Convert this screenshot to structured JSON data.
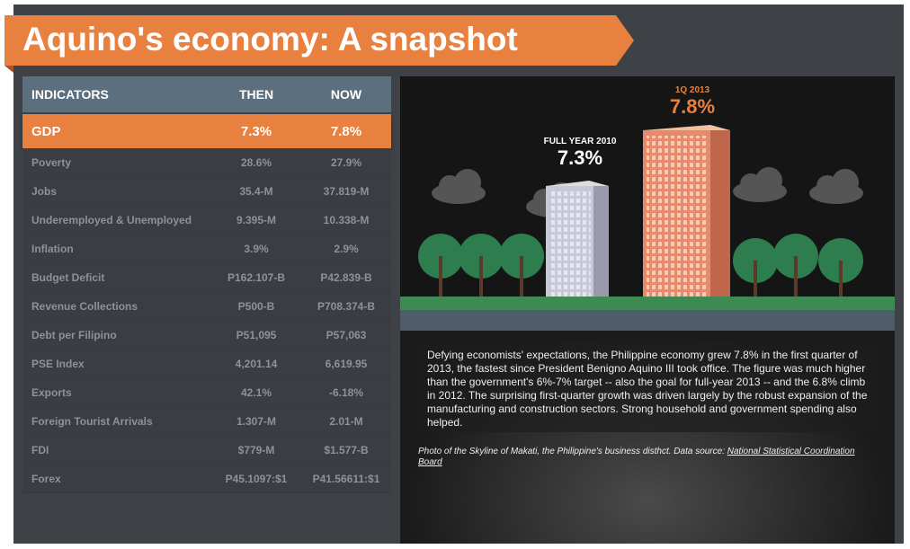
{
  "title": "Aquino's economy: A snapshot",
  "table": {
    "headers": [
      "INDICATORS",
      "THEN",
      "NOW"
    ],
    "highlight": {
      "name": "GDP",
      "then": "7.3%",
      "now": "7.8%"
    },
    "rows": [
      {
        "name": "Poverty",
        "then": "28.6%",
        "now": "27.9%"
      },
      {
        "name": "Jobs",
        "then": "35.4-M",
        "now": "37.819-M"
      },
      {
        "name": "Underemployed & Unemployed",
        "then": "9.395-M",
        "now": "10.338-M"
      },
      {
        "name": "Inflation",
        "then": "3.9%",
        "now": "2.9%"
      },
      {
        "name": "Budget Deficit",
        "then": "P162.107-B",
        "now": "P42.839-B"
      },
      {
        "name": "Revenue Collections",
        "then": "P500-B",
        "now": "P708.374-B"
      },
      {
        "name": "Debt per Filipino",
        "then": "P51,095",
        "now": "P57,063"
      },
      {
        "name": "PSE Index",
        "then": "4,201.14",
        "now": "6,619.95"
      },
      {
        "name": "Exports",
        "then": "42.1%",
        "now": "-6.18%"
      },
      {
        "name": "Foreign Tourist Arrivals",
        "then": "1.307-M",
        "now": "2.01-M"
      },
      {
        "name": "FDI",
        "then": "$779-M",
        "now": "$1.577-B"
      },
      {
        "name": "Forex",
        "then": "P45.1097:$1",
        "now": "P41.56611:$1"
      }
    ]
  },
  "illustration": {
    "left_label": "FULL YEAR 2010",
    "left_value": "7.3%",
    "right_label": "1Q 2013",
    "right_value": "7.8%",
    "accent": "#e8803f"
  },
  "description": "Defying economists' expectations, the Philippine economy grew 7.8% in the first quarter of 2013, the fastest since President Benigno Aquino III took office. The figure was much higher than the government's 6%-7% target -- also the goal for full-year 2013 -- and the 6.8% climb in 2012. The surprising first-quarter growth was driven largely by the robust expansion of the manufacturing and construction sectors. Strong household and government spending also helped.",
  "credit": {
    "text": "Photo of the Skyline of Makati, the Philippine's business disthct. Data source: ",
    "link": "National Statistical Coordination Board"
  }
}
